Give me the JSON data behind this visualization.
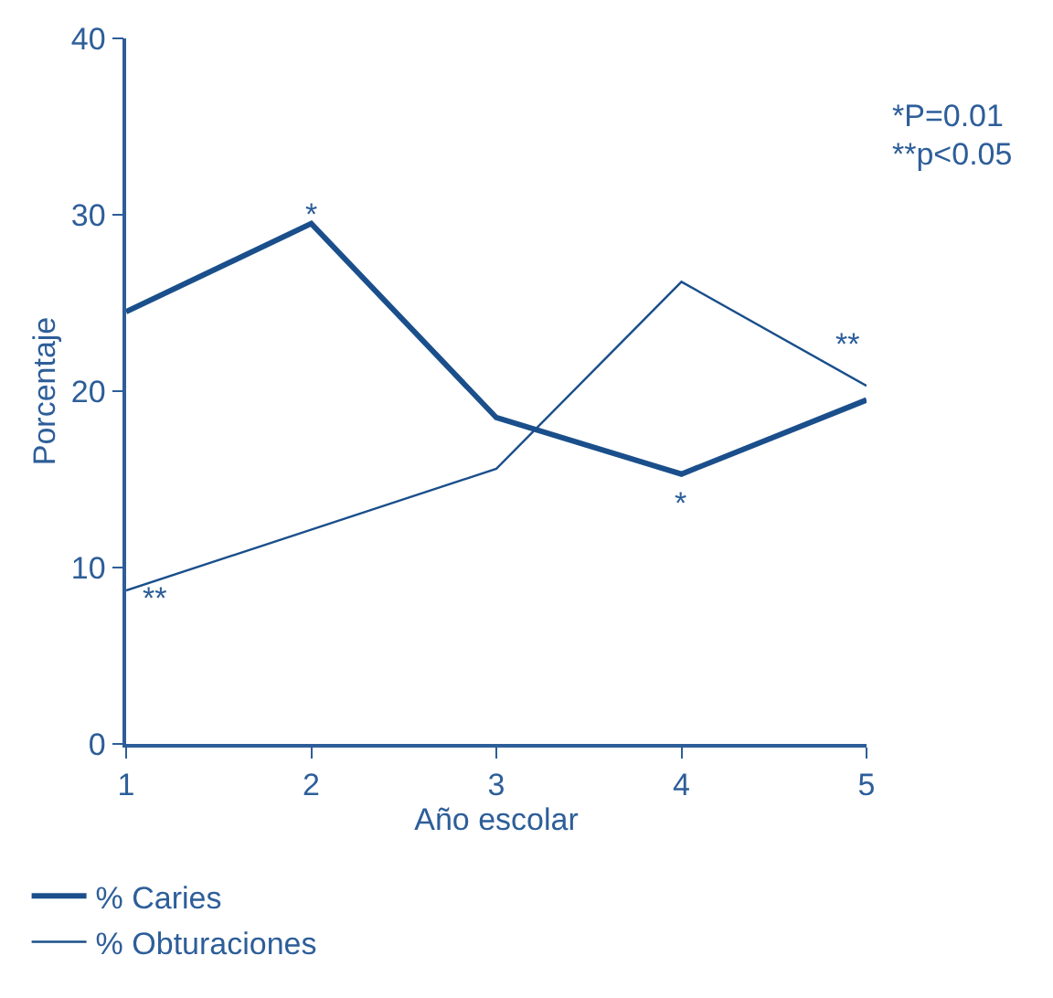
{
  "chart_data": {
    "type": "line",
    "xlabel": "Año escolar",
    "ylabel": "Porcentaje",
    "x": [
      1,
      2,
      3,
      4,
      5
    ],
    "xlim": [
      1,
      5
    ],
    "xticks": [
      1,
      2,
      3,
      4,
      5
    ],
    "ylim": [
      0,
      40
    ],
    "yticks": [
      0,
      10,
      20,
      30,
      40
    ],
    "series": [
      {
        "name": "% Caries",
        "color": "#1a4f8b",
        "values": [
          24.5,
          29.5,
          18.5,
          15.3,
          19.5
        ]
      },
      {
        "name": "% Obturaciones",
        "color": "#1a4f8b",
        "values": [
          8.7,
          null,
          15.6,
          26.2,
          20.3
        ]
      }
    ],
    "annotations": [
      "*",
      "*",
      "**",
      "**",
      "*P=0.01",
      "**p<0.05"
    ],
    "grid": false,
    "legend": "bottom",
    "marker": "none",
    "line_style": "solid"
  }
}
